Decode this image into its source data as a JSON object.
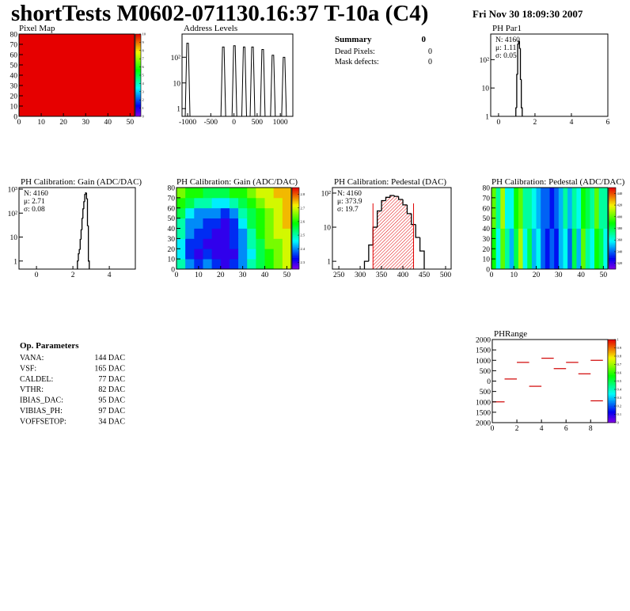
{
  "header": {
    "title": "shortTests M0602-071130.16:37 T-10a (C4)",
    "date": "Fri Nov 30 18:09:30 2007"
  },
  "summary": {
    "title": "Summary",
    "total": "0",
    "rows": [
      [
        "Dead Pixels:",
        "0"
      ],
      [
        "Mask defects:",
        "0"
      ]
    ]
  },
  "op_parameters": {
    "title": "Op. Parameters",
    "rows": [
      [
        "VANA:",
        "144 DAC"
      ],
      [
        "VSF:",
        "165 DAC"
      ],
      [
        "CALDEL:",
        "77 DAC"
      ],
      [
        "VTHR:",
        "82 DAC"
      ],
      [
        "IBIAS_DAC:",
        "95 DAC"
      ],
      [
        "VIBIAS_PH:",
        "97 DAC"
      ],
      [
        "VOFFSETOP:",
        "34 DAC"
      ]
    ]
  },
  "chart_data": [
    {
      "type": "heatmap",
      "title": "Pixel Map",
      "xlim": [
        0,
        52
      ],
      "ylim": [
        0,
        80
      ],
      "xticks": [
        0,
        10,
        20,
        30,
        40,
        50
      ],
      "yticks": [
        0,
        10,
        20,
        30,
        40,
        50,
        60,
        70,
        80
      ],
      "zlim": [
        0,
        10
      ],
      "zticks": [
        0,
        1,
        2,
        3,
        4,
        5,
        6,
        7,
        8,
        9,
        10
      ],
      "z": [
        [
          10
        ]
      ]
    },
    {
      "type": "peaks",
      "title": "Address Levels",
      "log": true,
      "xlim": [
        -1120,
        1270
      ],
      "ylim": [
        0.5,
        800
      ],
      "xticks": [
        -1000,
        -500,
        0,
        500,
        1000
      ],
      "yticks": [
        1,
        10,
        {
          "value": 100,
          "label": "10²"
        }
      ],
      "x": [
        -1000,
        -230,
        10,
        220,
        400,
        620,
        840,
        1080
      ],
      "values": [
        350,
        250,
        280,
        250,
        250,
        200,
        120,
        100
      ]
    },
    {
      "type": "histogram",
      "title": "PH Par1",
      "log": true,
      "xlim": [
        -0.43,
        6
      ],
      "ylim": [
        1,
        800
      ],
      "xticks": [
        0,
        2,
        4,
        6
      ],
      "yticks": [
        1,
        10,
        {
          "value": 100,
          "label": "10²"
        }
      ],
      "stats": [
        {
          "text": "N: 4160"
        },
        {
          "text": "μ: 1.11"
        },
        {
          "text": "σ: 0.05"
        }
      ],
      "bins": [
        0.95,
        1.0,
        1.05,
        1.1,
        1.15,
        1.2,
        1.25,
        1.3
      ],
      "values": [
        2,
        30,
        350,
        450,
        250,
        20,
        2
      ]
    },
    {
      "type": "histogram",
      "title": "PH Calibration: Gain (ADC/DAC)",
      "log": true,
      "xlim": [
        -0.96,
        5.43
      ],
      "ylim": [
        0.46,
        1166
      ],
      "xticks": [
        0,
        2,
        4
      ],
      "yticks": [
        1,
        10,
        {
          "value": 100,
          "label": "10²"
        },
        {
          "value": 1000,
          "label": "10³"
        }
      ],
      "stats": [
        {
          "text": "N: 4160"
        },
        {
          "text": "μ: 2.71"
        },
        {
          "text": "σ: 0.08"
        }
      ],
      "bins": [
        2.25,
        2.3,
        2.35,
        2.4,
        2.45,
        2.5,
        2.55,
        2.6,
        2.65,
        2.7,
        2.75,
        2.8,
        2.85,
        2.9
      ],
      "values": [
        1,
        2,
        3,
        8,
        20,
        60,
        150,
        300,
        600,
        700,
        400,
        30,
        1
      ]
    },
    {
      "type": "heatmap",
      "title": "PH Calibration: Gain (ADC/DAC)",
      "xlim": [
        0,
        52
      ],
      "ylim": [
        0,
        80
      ],
      "xticks": [
        0,
        10,
        20,
        30,
        40,
        50
      ],
      "yticks": [
        0,
        10,
        20,
        30,
        40,
        50,
        60,
        70,
        80
      ],
      "zlim": [
        2.25,
        2.85
      ],
      "zticks": [
        2.3,
        2.4,
        2.5,
        2.6,
        2.7,
        2.8
      ],
      "z": [
        [
          2.5,
          2.4,
          2.35,
          2.4,
          2.35,
          2.3,
          2.35,
          2.4,
          2.5,
          2.55,
          2.6,
          2.65,
          2.7
        ],
        [
          2.45,
          2.35,
          2.3,
          2.35,
          2.3,
          2.3,
          2.3,
          2.4,
          2.45,
          2.55,
          2.6,
          2.65,
          2.7
        ],
        [
          2.45,
          2.35,
          2.35,
          2.3,
          2.3,
          2.3,
          2.35,
          2.4,
          2.5,
          2.55,
          2.65,
          2.65,
          2.7
        ],
        [
          2.5,
          2.4,
          2.35,
          2.35,
          2.3,
          2.3,
          2.35,
          2.4,
          2.5,
          2.6,
          2.65,
          2.7,
          2.7
        ],
        [
          2.5,
          2.4,
          2.4,
          2.35,
          2.35,
          2.3,
          2.35,
          2.45,
          2.55,
          2.6,
          2.65,
          2.7,
          2.75
        ],
        [
          2.55,
          2.45,
          2.4,
          2.4,
          2.4,
          2.35,
          2.4,
          2.5,
          2.55,
          2.6,
          2.65,
          2.7,
          2.75
        ],
        [
          2.6,
          2.55,
          2.5,
          2.5,
          2.45,
          2.45,
          2.5,
          2.55,
          2.6,
          2.65,
          2.7,
          2.7,
          2.75
        ],
        [
          2.65,
          2.6,
          2.6,
          2.55,
          2.55,
          2.55,
          2.6,
          2.6,
          2.65,
          2.7,
          2.7,
          2.75,
          2.75
        ]
      ]
    },
    {
      "type": "histogram",
      "title": "PH Calibration: Pedestal (DAC)",
      "log": true,
      "xlim": [
        235,
        513
      ],
      "ylim": [
        0.59,
        145
      ],
      "xticks": [
        250,
        300,
        350,
        400,
        450,
        500
      ],
      "yticks": [
        1,
        10,
        {
          "value": 100,
          "label": "10²"
        }
      ],
      "stats": [
        {
          "text": "N: 4160",
          "color": "#000000"
        },
        {
          "text": "μ: 373.9",
          "color": "#e00000"
        },
        {
          "text": "σ: 19.7",
          "color": "#e00000"
        }
      ],
      "fit_range": [
        330,
        425
      ],
      "fit_color": "#e00000",
      "bins": [
        310,
        320,
        330,
        340,
        350,
        360,
        370,
        380,
        390,
        400,
        410,
        420,
        430,
        440,
        450
      ],
      "values": [
        1,
        3,
        10,
        30,
        60,
        75,
        85,
        80,
        65,
        45,
        25,
        12,
        5,
        2
      ]
    },
    {
      "type": "heatmap",
      "title": "PH Calibration: Pedestal (ADC/DAC)",
      "xlim": [
        0,
        52
      ],
      "ylim": [
        0,
        80
      ],
      "xticks": [
        0,
        10,
        20,
        30,
        40,
        50
      ],
      "yticks": [
        0,
        10,
        20,
        30,
        40,
        50,
        60,
        70,
        80
      ],
      "zlim": [
        310,
        450
      ],
      "zticks": [
        320,
        340,
        360,
        380,
        400,
        420,
        440
      ],
      "z": [
        [
          390,
          360,
          400,
          370,
          350,
          380,
          410,
          360,
          380,
          350,
          360,
          340,
          330,
          340,
          330,
          350,
          360,
          340,
          380,
          350,
          400,
          370,
          360,
          390,
          380,
          360
        ],
        [
          400,
          370,
          410,
          360,
          360,
          390,
          400,
          370,
          370,
          360,
          350,
          340,
          340,
          330,
          340,
          350,
          370,
          350,
          370,
          360,
          390,
          380,
          370,
          400,
          370,
          370
        ]
      ]
    },
    {
      "type": "segments",
      "title": "PHRange",
      "color": "#d00000",
      "xlim": [
        0,
        9.4
      ],
      "ylim": [
        -2000,
        2000
      ],
      "xticks": [
        0,
        2,
        4,
        6,
        8
      ],
      "yticks": [
        {
          "value": -2000,
          "label": "2000"
        },
        {
          "value": -1500,
          "label": "1500"
        },
        {
          "value": -1000,
          "label": "1000"
        },
        {
          "value": -500,
          "label": "500"
        },
        0,
        500,
        1000,
        1500,
        2000
      ],
      "zlim": [
        0,
        1
      ],
      "zticks": [
        0,
        0.1,
        0.2,
        0.3,
        0.4,
        0.5,
        0.6,
        0.7,
        0.8,
        0.9,
        1
      ],
      "x": [
        0,
        1,
        2,
        3,
        4,
        5,
        6,
        7,
        8,
        8
      ],
      "values": [
        -1000,
        100,
        900,
        -250,
        1100,
        600,
        900,
        350,
        1000,
        -950
      ]
    }
  ]
}
